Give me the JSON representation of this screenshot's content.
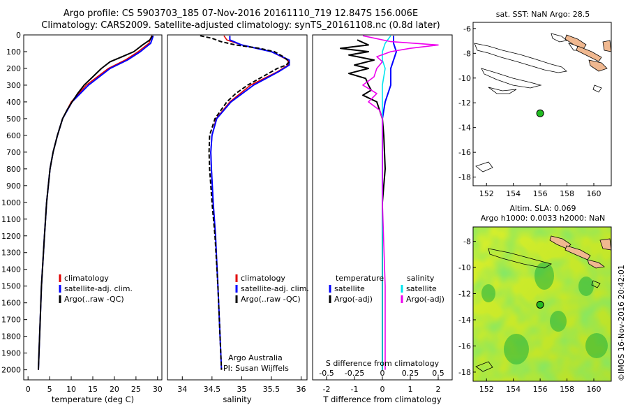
{
  "title": {
    "line1": "Argo profile: CS 5903703_185 07-Nov-2016 20161110_719 12.847S 156.006E",
    "line2": "Climatology: CARS2009. Satellite-adjusted climatology: synTS_20161108.nc (0.8d later)"
  },
  "colors": {
    "climatology": "#e00000",
    "satellite": "#0000ff",
    "argo": "#000000",
    "satellite_salinity": "#00e5ee",
    "argo_salinity_diff": "#ee00ee",
    "marker": "#22bb22",
    "land": "#f0b890",
    "map_green": "#33cc33",
    "map_yellow": "#eeff33"
  },
  "depth_axis": {
    "ticks": [
      0,
      100,
      200,
      300,
      400,
      500,
      600,
      700,
      800,
      900,
      1000,
      1100,
      1200,
      1300,
      1400,
      1500,
      1600,
      1700,
      1800,
      1900,
      2000
    ],
    "range": [
      0,
      2060
    ],
    "inverted": true
  },
  "chart_data": [
    {
      "type": "line",
      "xlabel": "temperature (deg C)",
      "xlim": [
        -1,
        31
      ],
      "xticks": [
        0,
        5,
        10,
        15,
        20,
        25,
        30
      ],
      "legend": [
        "climatology",
        "satellite-adj. clim.",
        "Argo(..raw -QC)"
      ],
      "series": [
        {
          "name": "climatology",
          "color_key": "climatology",
          "depth": [
            5,
            50,
            100,
            150,
            200,
            300,
            400,
            500,
            600,
            700,
            800,
            1000,
            1200,
            1500,
            2000
          ],
          "values": [
            28.6,
            28.0,
            25.5,
            22.5,
            18.6,
            13.5,
            10.0,
            8.0,
            6.8,
            5.8,
            5.1,
            4.3,
            3.8,
            3.1,
            2.4
          ]
        },
        {
          "name": "satellite-adj. clim.",
          "color_key": "satellite",
          "depth": [
            5,
            50,
            100,
            150,
            200,
            300,
            400,
            500,
            600,
            700,
            800,
            1000,
            1200,
            1500,
            2000
          ],
          "values": [
            29.0,
            28.4,
            26.0,
            23.0,
            19.0,
            14.0,
            10.2,
            8.0,
            6.8,
            5.8,
            5.1,
            4.3,
            3.8,
            3.1,
            2.4
          ]
        },
        {
          "name": "Argo(..raw -QC)",
          "color_key": "argo",
          "depth": [
            5,
            30,
            60,
            100,
            130,
            160,
            200,
            250,
            300,
            350,
            400,
            450,
            500,
            600,
            700,
            800,
            1000,
            1200,
            1500,
            2000
          ],
          "values": [
            28.8,
            28.2,
            26.5,
            24.5,
            21.8,
            19.0,
            17.0,
            15.0,
            13.0,
            11.5,
            10.2,
            9.0,
            8.0,
            6.8,
            5.8,
            5.1,
            4.3,
            3.8,
            3.1,
            2.4
          ]
        }
      ]
    },
    {
      "type": "line",
      "xlabel": "salinity",
      "xlim": [
        33.75,
        36.1
      ],
      "xticks": [
        34,
        34.5,
        35,
        35.5,
        36
      ],
      "legend": [
        "climatology",
        "satellite-adj. clim.",
        "Argo(..raw -QC)"
      ],
      "annotation": [
        "Argo Australia",
        "PI: Susan Wijffels"
      ],
      "series": [
        {
          "name": "climatology",
          "color_key": "climatology",
          "depth": [
            5,
            30,
            60,
            100,
            150,
            180,
            220,
            300,
            400,
            500,
            600,
            700,
            800,
            1000,
            1200,
            1500,
            2000
          ],
          "values": [
            34.7,
            34.75,
            35.0,
            35.5,
            35.78,
            35.78,
            35.6,
            35.15,
            34.8,
            34.57,
            34.5,
            34.48,
            34.49,
            34.52,
            34.56,
            34.6,
            34.66
          ]
        },
        {
          "name": "satellite-adj. clim.",
          "color_key": "satellite",
          "depth": [
            5,
            30,
            60,
            100,
            150,
            180,
            220,
            300,
            400,
            500,
            600,
            700,
            800,
            1000,
            1200,
            1500,
            2000
          ],
          "values": [
            34.8,
            34.8,
            35.0,
            35.5,
            35.8,
            35.8,
            35.62,
            35.2,
            34.82,
            34.58,
            34.5,
            34.48,
            34.49,
            34.52,
            34.56,
            34.6,
            34.66
          ]
        },
        {
          "name": "Argo(..raw -QC)",
          "color_key": "argo",
          "depth": [
            5,
            20,
            40,
            60,
            80,
            100,
            130,
            160,
            180,
            200,
            240,
            300,
            350,
            400,
            500,
            600,
            700,
            800,
            1000,
            1200,
            1500,
            2000
          ],
          "values": [
            34.3,
            34.5,
            34.65,
            34.9,
            35.3,
            35.55,
            35.7,
            35.8,
            35.75,
            35.6,
            35.4,
            35.1,
            34.9,
            34.75,
            34.55,
            34.46,
            34.45,
            34.46,
            34.5,
            34.55,
            34.6,
            34.66
          ]
        }
      ]
    },
    {
      "type": "line",
      "xlabel": "T difference from climatology",
      "top_label": "S difference from climatology",
      "xlim": [
        -2.5,
        2.5
      ],
      "xticks": [
        -2,
        -1,
        0,
        1,
        2
      ],
      "secondary_ticks": {
        "positions": [
          -2,
          -1,
          0,
          1,
          2
        ],
        "labels": [
          "-0.5",
          "-0.25",
          "0",
          "0.25",
          "0.5"
        ]
      },
      "legend_temperature": {
        "header": "temperature",
        "items": [
          "satellite",
          "Argo(-adj)"
        ]
      },
      "legend_salinity": {
        "header": "salinity",
        "items": [
          "satellite",
          "Argo(-adj)"
        ]
      },
      "series": [
        {
          "name": "temperature satellite",
          "color_key": "satellite",
          "depth": [
            5,
            50,
            100,
            150,
            200,
            300,
            400,
            500,
            700,
            1000,
            1500,
            2000
          ],
          "values": [
            0.4,
            0.4,
            0.5,
            0.4,
            0.3,
            0.3,
            0.1,
            0.0,
            0.0,
            0.0,
            0.0,
            0.0
          ]
        },
        {
          "name": "temperature Argo(-adj)",
          "color_key": "argo",
          "depth": [
            30,
            60,
            80,
            100,
            120,
            150,
            180,
            200,
            230,
            260,
            300,
            330,
            360,
            400,
            450,
            500,
            600,
            800,
            1000,
            1500,
            2000
          ],
          "values": [
            -0.9,
            -0.5,
            -1.5,
            -0.5,
            -1.2,
            -0.3,
            -1.0,
            -0.5,
            -1.2,
            -0.6,
            -0.5,
            -0.4,
            -0.7,
            -0.2,
            -0.1,
            0.0,
            0.05,
            0.1,
            0.0,
            0.0,
            0.0
          ]
        },
        {
          "name": "salinity satellite",
          "color_key": "satellite_salinity",
          "depth": [
            5,
            50,
            100,
            150,
            200,
            300,
            400,
            500,
            700,
            1000,
            1500,
            2000
          ],
          "values": [
            0.3,
            0.1,
            0.0,
            0.0,
            0.1,
            0.0,
            0.0,
            0.0,
            0.0,
            0.0,
            0.0,
            0.0
          ]
        },
        {
          "name": "salinity Argo(-adj)",
          "color_key": "argo_salinity_diff",
          "depth": [
            5,
            40,
            60,
            80,
            100,
            130,
            160,
            200,
            250,
            300,
            350,
            400,
            450,
            500,
            600,
            800,
            1000,
            1500,
            2000
          ],
          "values": [
            -0.7,
            0.3,
            2.0,
            1.0,
            0.3,
            -0.2,
            0.0,
            -0.2,
            -0.3,
            -0.7,
            -0.2,
            -0.5,
            -0.1,
            0.0,
            0.0,
            0.0,
            0.0,
            0.1,
            0.1
          ]
        }
      ]
    }
  ],
  "maps": [
    {
      "title": "sat. SST: NaN Argo: 28.5",
      "xlim": [
        151,
        161.3
      ],
      "ylim": [
        -18.7,
        -5.5
      ],
      "xticks": [
        152,
        154,
        156,
        158,
        160
      ],
      "yticks": [
        -6,
        -8,
        -10,
        -12,
        -14,
        -16,
        -18
      ],
      "marker": {
        "lon": 156.0,
        "lat": -12.85
      }
    },
    {
      "title_line1": "Altim. SLA: 0.069",
      "title_line2": "Argo h1000: 0.0033 h2000: NaN",
      "xlim": [
        151,
        161.3
      ],
      "ylim": [
        -18.7,
        -6.9
      ],
      "xticks": [
        152,
        154,
        156,
        158,
        160
      ],
      "yticks": [
        -8,
        -10,
        -12,
        -14,
        -16,
        -18
      ],
      "marker": {
        "lon": 156.0,
        "lat": -12.85
      }
    }
  ],
  "footer": "©IMOS 16-Nov-2016 20:42:01"
}
